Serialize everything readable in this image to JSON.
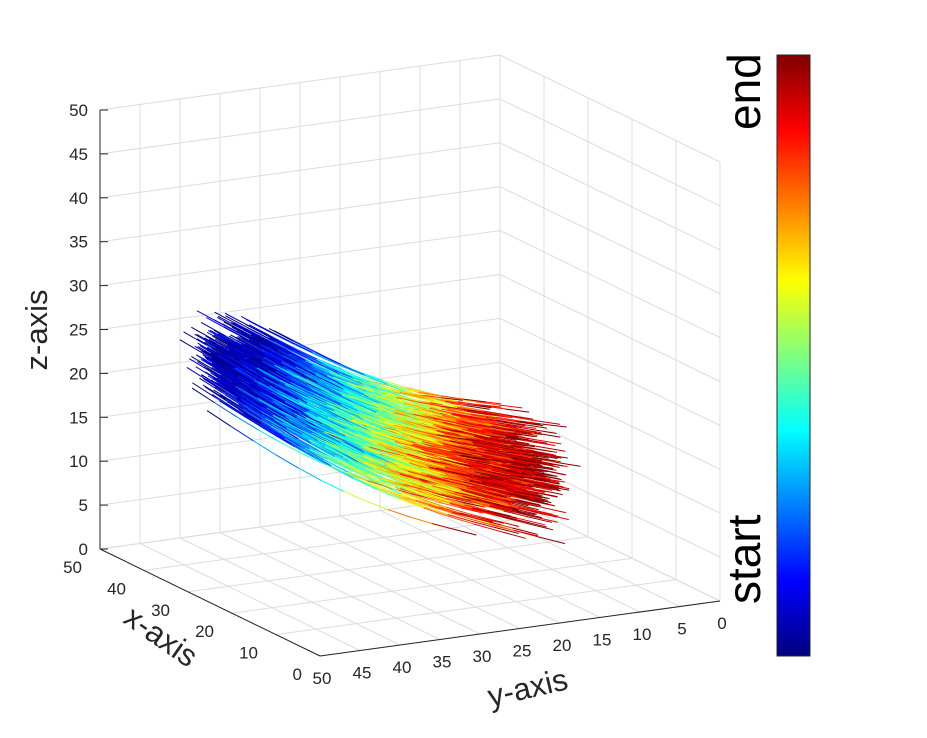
{
  "chart_data": {
    "type": "line",
    "plot_kind": "3d-streamlines",
    "title": "",
    "xlabel": "x-axis",
    "ylabel": "y-axis",
    "zlabel": "z-axis",
    "xlim": [
      0,
      50
    ],
    "ylim": [
      0,
      50
    ],
    "zlim": [
      0,
      50
    ],
    "x_ticks": [
      "0",
      "10",
      "20",
      "30",
      "40",
      "50"
    ],
    "y_ticks": [
      "0",
      "5",
      "10",
      "15",
      "20",
      "25",
      "30",
      "35",
      "40",
      "45",
      "50"
    ],
    "z_ticks": [
      "0",
      "5",
      "10",
      "15",
      "20",
      "25",
      "30",
      "35",
      "40",
      "45",
      "50"
    ],
    "grid": true,
    "colormap": "jet",
    "colorbar": {
      "low_label": "start",
      "high_label": "end",
      "colors": [
        "#00007f",
        "#0000ff",
        "#007fff",
        "#00ffff",
        "#7fff7f",
        "#ffff00",
        "#ff7f00",
        "#ff0000",
        "#7f0000"
      ]
    },
    "bundle": {
      "line_count": 700,
      "start_centroid": {
        "x": 25,
        "y": 47,
        "z": 27
      },
      "end_centroid": {
        "x": 20,
        "y": 15,
        "z": 12
      },
      "color_meaning": "position along streamline, start to end"
    }
  }
}
